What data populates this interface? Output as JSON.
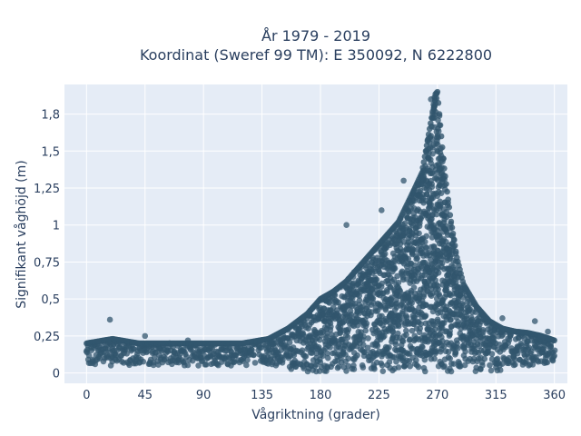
{
  "chart_data": {
    "type": "scatter",
    "title_lines": [
      "År 1979 - 2019",
      "Koordinat (Sweref 99 TM): E 350092, N 6222800"
    ],
    "xlabel": "Vågriktning (grader)",
    "ylabel": "Signifikant våghöjd (m)",
    "xlim": [
      -17,
      370
    ],
    "ylim": [
      -0.07,
      1.95
    ],
    "x_ticks": [
      0,
      45,
      90,
      135,
      180,
      225,
      270,
      315,
      360
    ],
    "x_tick_labels": [
      "0",
      "45",
      "90",
      "135",
      "180",
      "225",
      "270",
      "315",
      "360"
    ],
    "y_ticks": [
      0,
      0.25,
      0.5,
      0.75,
      1,
      1.25,
      1.5,
      1.75
    ],
    "y_tick_labels": [
      "0",
      "0,25",
      "0,5",
      "0,75",
      "1",
      "1,25",
      "1,5",
      "1,8"
    ],
    "grid": true,
    "legend": "none",
    "colors": {
      "marker": "#32566e",
      "plot_bg": "#e5ecf6",
      "grid": "#ffffff",
      "text": "#2a3f5f"
    },
    "envelope": {
      "x": [
        0,
        20,
        40,
        60,
        80,
        100,
        120,
        140,
        155,
        170,
        180,
        190,
        200,
        210,
        220,
        230,
        240,
        250,
        258,
        263,
        266,
        268,
        270,
        272,
        275,
        280,
        285,
        290,
        300,
        310,
        320,
        330,
        340,
        350,
        360
      ],
      "y_max": [
        0.2,
        0.23,
        0.2,
        0.2,
        0.2,
        0.2,
        0.2,
        0.23,
        0.3,
        0.4,
        0.5,
        0.55,
        0.62,
        0.72,
        0.82,
        0.92,
        1.02,
        1.2,
        1.35,
        1.6,
        1.75,
        1.88,
        1.9,
        1.7,
        1.4,
        1.05,
        0.78,
        0.6,
        0.45,
        0.35,
        0.3,
        0.28,
        0.27,
        0.25,
        0.22
      ]
    },
    "outliers": [
      {
        "x": 18,
        "y": 0.36
      },
      {
        "x": 45,
        "y": 0.25
      },
      {
        "x": 78,
        "y": 0.22
      },
      {
        "x": 177,
        "y": 0.45
      },
      {
        "x": 200,
        "y": 1.0
      },
      {
        "x": 227,
        "y": 1.1
      },
      {
        "x": 244,
        "y": 1.3
      },
      {
        "x": 265,
        "y": 1.85
      },
      {
        "x": 300,
        "y": 0.45
      },
      {
        "x": 320,
        "y": 0.37
      },
      {
        "x": 345,
        "y": 0.35
      },
      {
        "x": 355,
        "y": 0.28
      }
    ]
  }
}
